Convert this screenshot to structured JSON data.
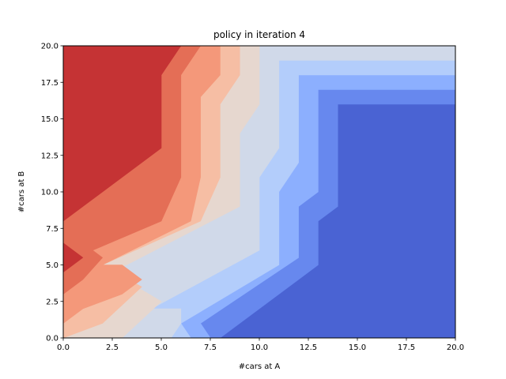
{
  "chart_data": {
    "type": "heatmap",
    "plot_style": "filled-contour",
    "title": "policy in iteration 4",
    "xlabel": "#cars at A",
    "ylabel": "#cars at B",
    "xlim": [
      0,
      20
    ],
    "ylim": [
      0,
      20
    ],
    "x_ticks": [
      "0.0",
      "2.5",
      "5.0",
      "7.5",
      "10.0",
      "12.5",
      "15.0",
      "17.5",
      "20.0"
    ],
    "y_ticks": [
      "0.0",
      "2.5",
      "5.0",
      "7.5",
      "10.0",
      "12.5",
      "15.0",
      "17.5",
      "20.0"
    ],
    "grid": false,
    "colormap": "coolwarm",
    "colors": [
      "#4a63d3",
      "#6788ee",
      "#8caffe",
      "#b3cdfb",
      "#d0d9e9",
      "#e6d7cf",
      "#f6bea4",
      "#f4987a",
      "#e46e56",
      "#c53334"
    ],
    "regions": [
      {
        "color": "#4a63d3",
        "points": [
          [
            0,
            0
          ],
          [
            20,
            0
          ],
          [
            20,
            20
          ],
          [
            0,
            20
          ]
        ]
      },
      {
        "color": "#6788ee",
        "points": [
          [
            0,
            0
          ],
          [
            8,
            0
          ],
          [
            13,
            5
          ],
          [
            13,
            8
          ],
          [
            14,
            9
          ],
          [
            14,
            16
          ],
          [
            20,
            16
          ],
          [
            20,
            20
          ],
          [
            0,
            20
          ]
        ]
      },
      {
        "color": "#8caffe",
        "points": [
          [
            0,
            0
          ],
          [
            7.5,
            0
          ],
          [
            7,
            1
          ],
          [
            12,
            5.5
          ],
          [
            12,
            9
          ],
          [
            13,
            10
          ],
          [
            13,
            17
          ],
          [
            20,
            17
          ],
          [
            20,
            20
          ],
          [
            0,
            20
          ]
        ]
      },
      {
        "color": "#b3cdfb",
        "points": [
          [
            0,
            0
          ],
          [
            6.5,
            0
          ],
          [
            6,
            1
          ],
          [
            11,
            5
          ],
          [
            11,
            10
          ],
          [
            12,
            12
          ],
          [
            12,
            18
          ],
          [
            20,
            18
          ],
          [
            20,
            20
          ],
          [
            0,
            20
          ]
        ]
      },
      {
        "color": "#d0d9e9",
        "points": [
          [
            0,
            0
          ],
          [
            5.5,
            0
          ],
          [
            6,
            1
          ],
          [
            6,
            2
          ],
          [
            4.5,
            2
          ],
          [
            10,
            6
          ],
          [
            10,
            11
          ],
          [
            11,
            13
          ],
          [
            11,
            19
          ],
          [
            20,
            19
          ],
          [
            20,
            20
          ],
          [
            0,
            20
          ]
        ]
      },
      {
        "color": "#e6d7cf",
        "points": [
          [
            0,
            0
          ],
          [
            3,
            0
          ],
          [
            5,
            2.5
          ],
          [
            2.5,
            4.5
          ],
          [
            9,
            9
          ],
          [
            9,
            14
          ],
          [
            10,
            16
          ],
          [
            10,
            20
          ],
          [
            0,
            20
          ]
        ]
      },
      {
        "color": "#f6bea4",
        "points": [
          [
            0,
            0
          ],
          [
            2,
            1
          ],
          [
            4,
            3.5
          ],
          [
            2,
            5
          ],
          [
            7,
            8
          ],
          [
            8,
            11
          ],
          [
            8,
            16
          ],
          [
            9,
            18
          ],
          [
            9,
            20
          ],
          [
            0,
            20
          ]
        ]
      },
      {
        "color": "#f4987a",
        "points": [
          [
            0,
            0
          ],
          [
            0,
            1
          ],
          [
            1,
            2
          ],
          [
            3,
            3
          ],
          [
            4,
            4
          ],
          [
            3,
            5
          ],
          [
            2,
            5
          ],
          [
            6.5,
            8
          ],
          [
            7,
            11
          ],
          [
            7,
            16.5
          ],
          [
            8,
            18
          ],
          [
            8,
            20
          ],
          [
            0,
            20
          ]
        ]
      },
      {
        "color": "#e46e56",
        "points": [
          [
            0,
            3
          ],
          [
            1,
            4
          ],
          [
            2,
            5.5
          ],
          [
            1.5,
            6
          ],
          [
            5,
            8
          ],
          [
            6,
            11
          ],
          [
            6,
            18
          ],
          [
            7,
            20
          ],
          [
            0,
            20
          ]
        ]
      },
      {
        "color": "#c53334",
        "points": [
          [
            0,
            4.5
          ],
          [
            1,
            5.5
          ],
          [
            0,
            6.5
          ],
          [
            0,
            8
          ],
          [
            1,
            9
          ],
          [
            5,
            13
          ],
          [
            5,
            18
          ],
          [
            6,
            20
          ],
          [
            0,
            20
          ]
        ]
      }
    ]
  }
}
